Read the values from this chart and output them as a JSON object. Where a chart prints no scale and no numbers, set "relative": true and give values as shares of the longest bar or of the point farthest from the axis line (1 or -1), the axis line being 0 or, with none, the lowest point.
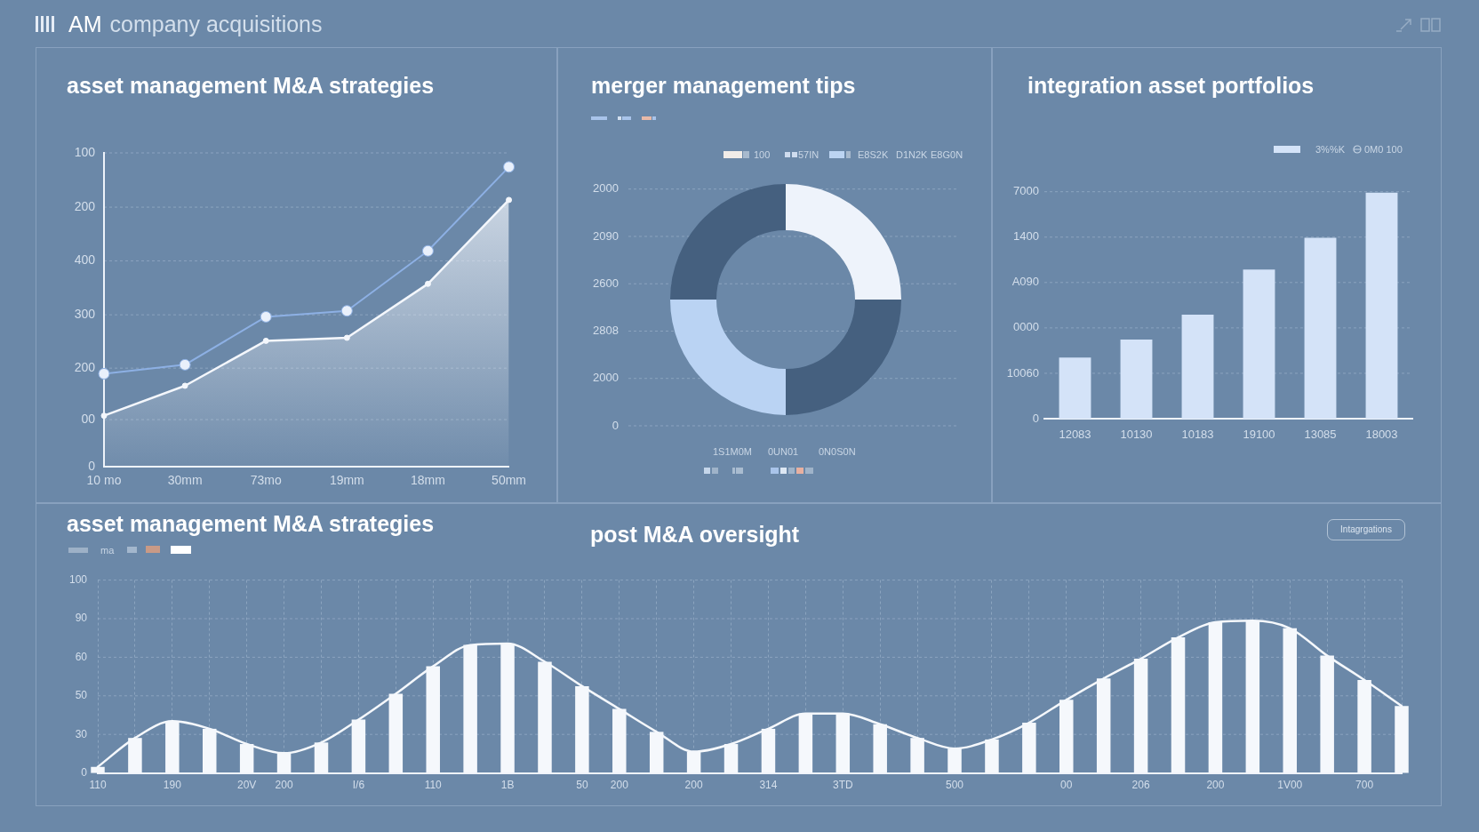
{
  "chart_data": [
    {
      "type": "other",
      "title": "AM",
      "subtitle": "company acquisitions"
    },
    {
      "type": "line",
      "title": "asset management M&A strategies",
      "categories": [
        "10 mo",
        "30mm",
        "73mo",
        "19mm",
        "18mm",
        "50mm"
      ],
      "relative": true,
      "grid": "y",
      "marker": "circle",
      "series": [
        {
          "color": "#8db0e4",
          "values": [
            0.31,
            0.34,
            0.5,
            0.52,
            0.72,
            1
          ]
        },
        {
          "type": "area",
          "color": "#f4f7fc",
          "values": [
            0.17,
            0.27,
            0.42,
            0.43,
            0.61,
            0.89
          ]
        }
      ],
      "annotations": [
        "100",
        "200",
        "400",
        "300",
        "200",
        "00",
        "0"
      ]
    },
    {
      "type": "donut",
      "title": "merger management tips",
      "categories": [
        null,
        null,
        null,
        null
      ],
      "values": [
        25,
        25,
        25,
        25
      ],
      "colors": [
        "#eef3fb",
        "#45607f",
        "#bad3f3",
        "#45607f"
      ],
      "grid": "y",
      "annotations": [
        "2000",
        "2090",
        "2600",
        "2808",
        "2000",
        "0",
        "100",
        "57IN",
        "E8S2K",
        "D1N2K",
        "E8G0N",
        "1S1M0M",
        "0UN01",
        "0N0S0N"
      ]
    },
    {
      "type": "bar",
      "title": "integration asset portfolios",
      "categories": [
        "12083",
        "10130",
        "10183",
        "19100",
        "13085",
        "18003"
      ],
      "relative": true,
      "series": [
        {
          "name": "3%%K",
          "color": "#d4e3f8",
          "values": [
            0.27,
            0.35,
            0.46,
            0.66,
            0.8,
            1
          ]
        }
      ],
      "grid": "y",
      "legend": "top right",
      "annotations": [
        "7000",
        "1400",
        "A090",
        "0000",
        "10060",
        "0",
        "0M0 100"
      ]
    },
    {
      "type": "bar",
      "title": "asset management M&A strategies",
      "subtitle": "post M&A oversight",
      "categories": [
        "110",
        null,
        "190",
        null,
        "20V",
        "200",
        null,
        "I/6",
        null,
        "110",
        null,
        "1B",
        null,
        "50",
        "200",
        null,
        "200",
        null,
        "314",
        null,
        "3TD",
        null,
        null,
        "500",
        null,
        null,
        "00",
        null,
        "206",
        null,
        "200",
        null,
        "1V00",
        null,
        "700",
        null
      ],
      "relative": true,
      "series": [
        {
          "color": "#f5f8fc",
          "values": [
            0.04,
            0.23,
            0.34,
            0.29,
            0.19,
            0.13,
            0.2,
            0.35,
            0.52,
            0.7,
            0.84,
            0.85,
            0.73,
            0.57,
            0.42,
            0.27,
            0.14,
            0.19,
            0.29,
            0.39,
            0.39,
            0.32,
            0.23,
            0.16,
            0.22,
            0.33,
            0.48,
            0.62,
            0.75,
            0.89,
            0.99,
            1,
            0.95,
            0.77,
            0.61,
            0.44
          ]
        },
        {
          "type": "line",
          "color": "#f5f8fc",
          "values": [
            0.04,
            0.23,
            0.34,
            0.29,
            0.19,
            0.13,
            0.2,
            0.35,
            0.52,
            0.7,
            0.84,
            0.85,
            0.73,
            0.57,
            0.42,
            0.27,
            0.14,
            0.19,
            0.29,
            0.39,
            0.39,
            0.32,
            0.23,
            0.16,
            0.22,
            0.33,
            0.48,
            0.62,
            0.75,
            0.89,
            0.99,
            1,
            0.95,
            0.77,
            0.61,
            0.44
          ]
        }
      ],
      "grid": true,
      "annotations": [
        "100",
        "90",
        "60",
        "50",
        "30",
        "0",
        "ma",
        "Intagrgations"
      ]
    }
  ]
}
